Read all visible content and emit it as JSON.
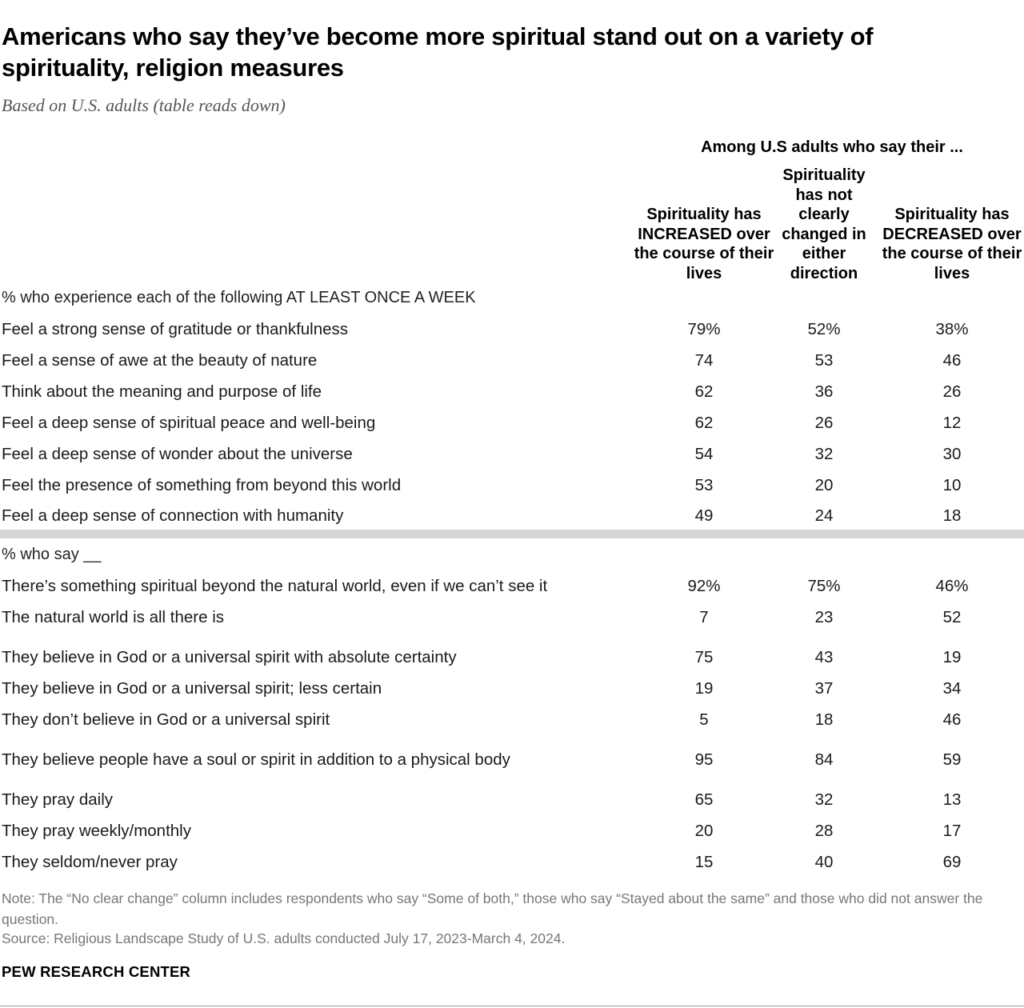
{
  "title": "Americans who say they’ve become more spiritual stand out on a variety of spirituality, religion measures",
  "subtitle": "Based on U.S. adults (table reads down)",
  "chart_data": {
    "type": "table",
    "group_header": "Among U.S adults who say their ...",
    "columns": [
      "Spirituality has INCREASED over the course of their lives",
      "Spirituality has not clearly changed in either direction",
      "Spirituality has DECREASED over the course of their lives"
    ],
    "sections": [
      {
        "label": "% who experience each of the following AT LEAST ONCE A WEEK",
        "rows": [
          {
            "label": "Feel a strong sense of gratitude or thankfulness",
            "values": [
              "79%",
              "52%",
              "38%"
            ]
          },
          {
            "label": "Feel a sense of awe at the beauty of nature",
            "values": [
              "74",
              "53",
              "46"
            ]
          },
          {
            "label": "Think about the meaning and purpose of life",
            "values": [
              "62",
              "36",
              "26"
            ]
          },
          {
            "label": "Feel a deep sense of spiritual peace and well-being",
            "values": [
              "62",
              "26",
              "12"
            ]
          },
          {
            "label": "Feel a deep sense of wonder about the universe",
            "values": [
              "54",
              "32",
              "30"
            ]
          },
          {
            "label": "Feel the presence of something from beyond this world",
            "values": [
              "53",
              "20",
              "10"
            ]
          },
          {
            "label": "Feel a deep sense of connection with humanity",
            "values": [
              "49",
              "24",
              "18"
            ]
          }
        ]
      },
      {
        "label": "% who say __",
        "rows": [
          {
            "label": "There’s something spiritual beyond the natural world, even if we can’t see it",
            "values": [
              "92%",
              "75%",
              "46%"
            ]
          },
          {
            "label": "The natural world is all there is",
            "values": [
              "7",
              "23",
              "52"
            ]
          },
          {
            "label": "They believe in God or a universal spirit with absolute certainty",
            "values": [
              "75",
              "43",
              "19"
            ]
          },
          {
            "label": "They believe in God or a universal spirit; less certain",
            "values": [
              "19",
              "37",
              "34"
            ]
          },
          {
            "label": "They don’t believe in God or a universal spirit",
            "values": [
              "5",
              "18",
              "46"
            ]
          },
          {
            "label": "They believe people have a soul or spirit in addition to a physical body",
            "values": [
              "95",
              "84",
              "59"
            ]
          },
          {
            "label": "They pray daily",
            "values": [
              "65",
              "32",
              "13"
            ]
          },
          {
            "label": "They pray weekly/monthly",
            "values": [
              "20",
              "28",
              "17"
            ]
          },
          {
            "label": "They seldom/never pray",
            "values": [
              "15",
              "40",
              "69"
            ]
          }
        ]
      }
    ]
  },
  "note": "Note: The “No clear change” column includes respondents who say “Some of both,” those who say “Stayed about the same” and those who did not answer the question.",
  "source": "Source: Religious Landscape Study of U.S. adults conducted July 17, 2023-March 4, 2024.",
  "brand": "PEW RESEARCH CENTER"
}
